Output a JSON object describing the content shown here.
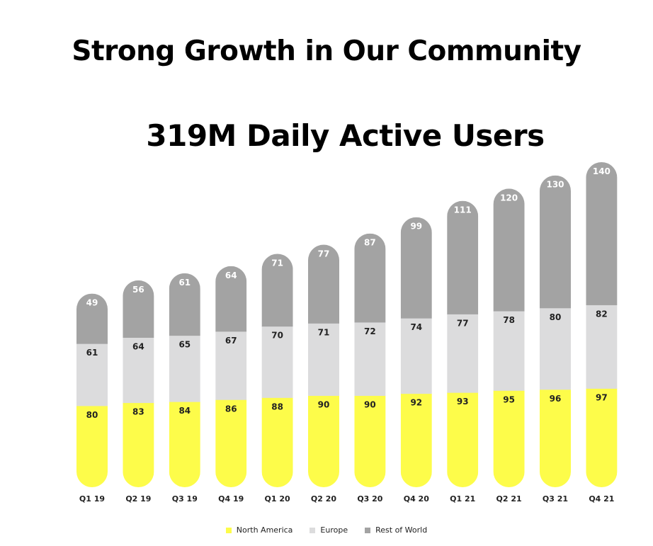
{
  "header": {
    "title": "Strong Growth in Our Community",
    "subtitle": "319M Daily Active Users"
  },
  "colors": {
    "north_america": "#fdfc4a",
    "europe": "#dcdcdd",
    "rest_of_world": "#a3a3a3",
    "label_dark": "#222222",
    "label_light": "#ffffff"
  },
  "chart_data": {
    "type": "bar",
    "stacked": true,
    "categories": [
      "Q1 19",
      "Q2 19",
      "Q3 19",
      "Q4 19",
      "Q1 20",
      "Q2 20",
      "Q3 20",
      "Q4 20",
      "Q1 21",
      "Q2 21",
      "Q3 21",
      "Q4 21"
    ],
    "series": [
      {
        "name": "North America",
        "values": [
          80,
          83,
          84,
          86,
          88,
          90,
          90,
          92,
          93,
          95,
          96,
          97
        ]
      },
      {
        "name": "Europe",
        "values": [
          61,
          64,
          65,
          67,
          70,
          71,
          72,
          74,
          77,
          78,
          80,
          82
        ]
      },
      {
        "name": "Rest of World",
        "values": [
          49,
          56,
          61,
          64,
          71,
          77,
          87,
          99,
          111,
          120,
          130,
          140
        ]
      }
    ],
    "title": "319M Daily Active Users",
    "ylim": [
      0,
      319
    ],
    "grid": false,
    "legend": "bottom-center"
  }
}
